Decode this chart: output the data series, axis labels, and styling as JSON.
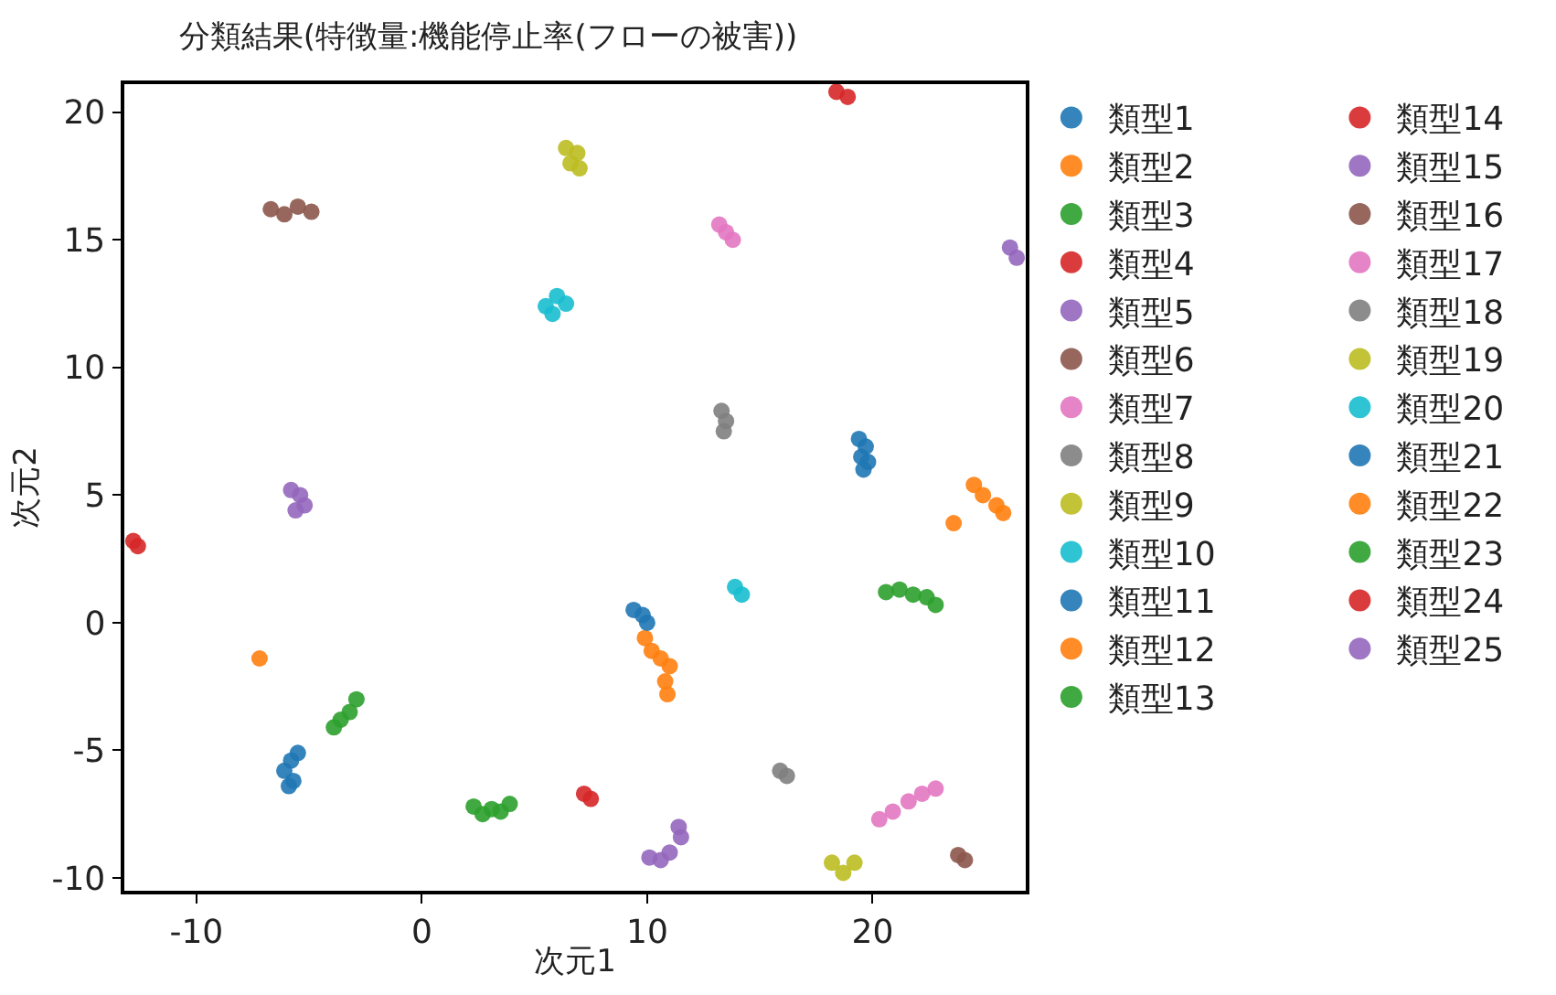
{
  "chart_data": {
    "type": "scatter",
    "title": "分類結果(特徴量:機能停止率(フローの被害))",
    "xlabel": "次元1",
    "ylabel": "次元2",
    "xlim": [
      -13.2,
      26.8
    ],
    "ylim": [
      -10.5,
      21.1
    ],
    "xticks": [
      -10,
      0,
      10,
      20
    ],
    "yticks": [
      -10,
      -5,
      0,
      5,
      10,
      15,
      20
    ],
    "legend": "right",
    "marker": "circle",
    "series": [
      {
        "name": "類型1",
        "color": "#1f77b4",
        "x": [
          19.4,
          19.7,
          19.5,
          19.8,
          19.6
        ],
        "values": [
          7.2,
          6.9,
          6.5,
          6.3,
          6.0
        ]
      },
      {
        "name": "類型2",
        "color": "#ff7f0e",
        "x": [
          9.9,
          10.2,
          10.6,
          11.0,
          10.8,
          10.9
        ],
        "values": [
          -0.6,
          -1.1,
          -1.4,
          -1.7,
          -2.3,
          -2.8
        ]
      },
      {
        "name": "類型3",
        "color": "#2ca02c",
        "x": [
          2.3,
          2.7,
          3.1,
          3.5,
          3.9
        ],
        "values": [
          -7.2,
          -7.5,
          -7.3,
          -7.4,
          -7.1
        ]
      },
      {
        "name": "類型4",
        "color": "#d62728",
        "x": [
          -12.8,
          -12.6
        ],
        "values": [
          3.2,
          3.0
        ]
      },
      {
        "name": "類型5",
        "color": "#9467bd",
        "x": [
          -5.8,
          -5.4,
          -5.2,
          -5.6
        ],
        "values": [
          5.2,
          5.0,
          4.6,
          4.4
        ]
      },
      {
        "name": "類型6",
        "color": "#8c564b",
        "x": [
          23.8,
          24.1
        ],
        "values": [
          -9.1,
          -9.3
        ]
      },
      {
        "name": "類型7",
        "color": "#e377c2",
        "x": [
          20.3,
          20.9,
          21.6,
          22.2,
          22.8
        ],
        "values": [
          -7.7,
          -7.4,
          -7.0,
          -6.7,
          -6.5
        ]
      },
      {
        "name": "類型8",
        "color": "#7f7f7f",
        "x": [
          15.9,
          16.2
        ],
        "values": [
          -5.8,
          -6.0
        ]
      },
      {
        "name": "類型9",
        "color": "#bcbd22",
        "x": [
          18.2,
          18.7,
          19.2
        ],
        "values": [
          -9.4,
          -9.8,
          -9.4
        ]
      },
      {
        "name": "類型10",
        "color": "#17becf",
        "x": [
          13.9,
          14.2
        ],
        "values": [
          1.4,
          1.1
        ]
      },
      {
        "name": "類型11",
        "color": "#1f77b4",
        "x": [
          -5.5,
          -5.8,
          -6.1,
          -5.7,
          -5.9
        ],
        "values": [
          -5.1,
          -5.4,
          -5.8,
          -6.2,
          -6.4
        ]
      },
      {
        "name": "類型12",
        "color": "#ff7f0e",
        "x": [
          -7.2
        ],
        "values": [
          -1.4
        ]
      },
      {
        "name": "類型13",
        "color": "#2ca02c",
        "x": [
          -2.9,
          -3.2,
          -3.6,
          -3.9
        ],
        "values": [
          -3.0,
          -3.5,
          -3.8,
          -4.1
        ]
      },
      {
        "name": "類型14",
        "color": "#d62728",
        "x": [
          18.4,
          18.9
        ],
        "values": [
          20.8,
          20.6
        ]
      },
      {
        "name": "類型15",
        "color": "#9467bd",
        "x": [
          10.1,
          10.6,
          11.0,
          11.5,
          11.4
        ],
        "values": [
          -9.2,
          -9.3,
          -9.0,
          -8.4,
          -8.0
        ]
      },
      {
        "name": "類型16",
        "color": "#8c564b",
        "x": [
          -6.7,
          -6.1,
          -5.5,
          -4.9
        ],
        "values": [
          16.2,
          16.0,
          16.3,
          16.1
        ]
      },
      {
        "name": "類型17",
        "color": "#e377c2",
        "x": [
          13.2,
          13.5,
          13.8
        ],
        "values": [
          15.6,
          15.3,
          15.0
        ]
      },
      {
        "name": "類型18",
        "color": "#7f7f7f",
        "x": [
          13.3,
          13.5,
          13.4
        ],
        "values": [
          8.3,
          7.9,
          7.5
        ]
      },
      {
        "name": "類型19",
        "color": "#bcbd22",
        "x": [
          6.4,
          6.9,
          6.6,
          7.0
        ],
        "values": [
          18.6,
          18.4,
          18.0,
          17.8
        ]
      },
      {
        "name": "類型20",
        "color": "#17becf",
        "x": [
          5.5,
          6.0,
          6.4,
          5.8
        ],
        "values": [
          12.4,
          12.8,
          12.5,
          12.1
        ]
      },
      {
        "name": "類型21",
        "color": "#1f77b4",
        "x": [
          9.4,
          9.8,
          10.0
        ],
        "values": [
          0.5,
          0.3,
          0.0
        ]
      },
      {
        "name": "類型22",
        "color": "#ff7f0e",
        "x": [
          24.5,
          24.9,
          25.5,
          25.8,
          23.6
        ],
        "values": [
          5.4,
          5.0,
          4.6,
          4.3,
          3.9
        ]
      },
      {
        "name": "類型23",
        "color": "#2ca02c",
        "x": [
          20.6,
          21.2,
          21.8,
          22.4,
          22.8
        ],
        "values": [
          1.2,
          1.3,
          1.1,
          1.0,
          0.7
        ]
      },
      {
        "name": "類型24",
        "color": "#d62728",
        "x": [
          7.2,
          7.5
        ],
        "values": [
          -6.7,
          -6.9
        ]
      },
      {
        "name": "類型25",
        "color": "#9467bd",
        "x": [
          26.1,
          26.4
        ],
        "values": [
          14.7,
          14.3
        ]
      }
    ]
  }
}
